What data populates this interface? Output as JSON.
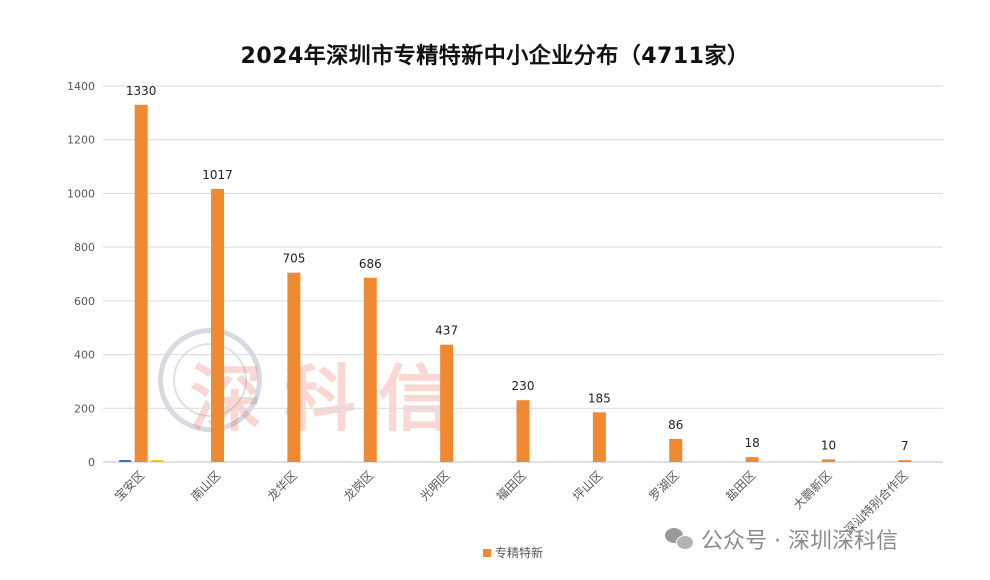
{
  "watermark": {
    "text": "公众号 · 深圳深科信",
    "icon": "wechat-icon"
  },
  "stamp": {
    "text": "深科信",
    "seal_text": "SHEN KE XIN",
    "seal_year": "2004"
  },
  "colors": {
    "bar": "#f08a32",
    "grid": "#d9d9d9",
    "axis": "#bfbfbf",
    "axis_text": "#595959"
  },
  "chart_data": {
    "type": "bar",
    "title": "2024年深圳市专精特新中小企业分布（4711家）",
    "categories": [
      "宝安区",
      "南山区",
      "龙华区",
      "龙岗区",
      "光明区",
      "福田区",
      "坪山区",
      "罗湖区",
      "盐田区",
      "大鹏新区",
      "深汕特别合作区"
    ],
    "series": [
      {
        "name": "专精特新",
        "values": [
          1330,
          1017,
          705,
          686,
          437,
          230,
          185,
          86,
          18,
          10,
          7
        ]
      }
    ],
    "data_labels": [
      "1330",
      "1017",
      "705",
      "686",
      "437",
      "230",
      "185",
      "86",
      "18",
      "10",
      "7"
    ],
    "ylim": [
      0,
      1400
    ],
    "yticks": [
      0,
      200,
      400,
      600,
      800,
      1000,
      1200,
      1400
    ],
    "xlabel": "",
    "ylabel": "",
    "grid": true,
    "legend": "bottom"
  }
}
